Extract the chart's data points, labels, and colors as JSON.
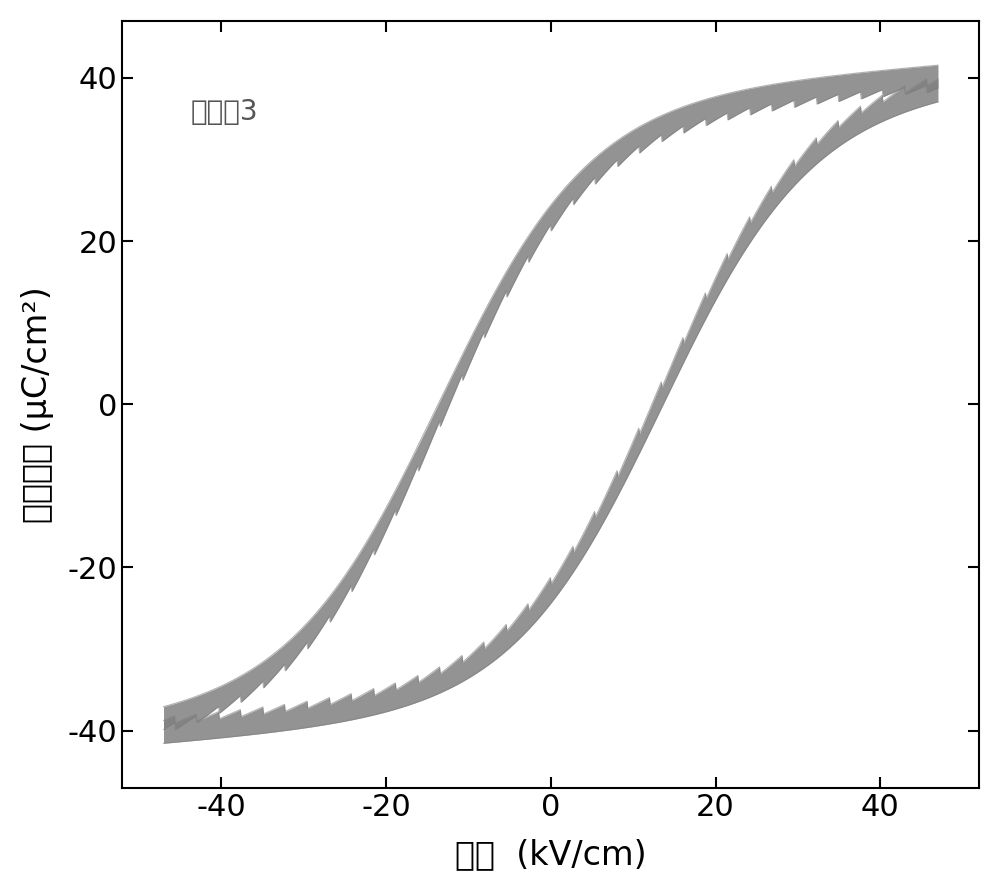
{
  "xlabel": "电场  (kV/cm)",
  "ylabel": "极化强度 (μC/cm²)",
  "annotation": "实施例3",
  "xlim": [
    -52,
    52
  ],
  "ylim": [
    -47,
    47
  ],
  "xticks": [
    -40,
    -20,
    0,
    20,
    40
  ],
  "yticks": [
    -40,
    -20,
    0,
    20,
    40
  ],
  "line_color": "#808080",
  "fill_color": "#808080",
  "line_width": 2.0,
  "background_color": "#ffffff",
  "E_max": 47.0,
  "Pmax": 36.5,
  "Pr": 4.5,
  "Ec": 13.5,
  "k_switch": 0.055,
  "noise_amplitude": 0.45,
  "n_points": 1000,
  "xlabel_fontsize": 24,
  "ylabel_fontsize": 24,
  "tick_fontsize": 22,
  "annotation_fontsize": 20
}
